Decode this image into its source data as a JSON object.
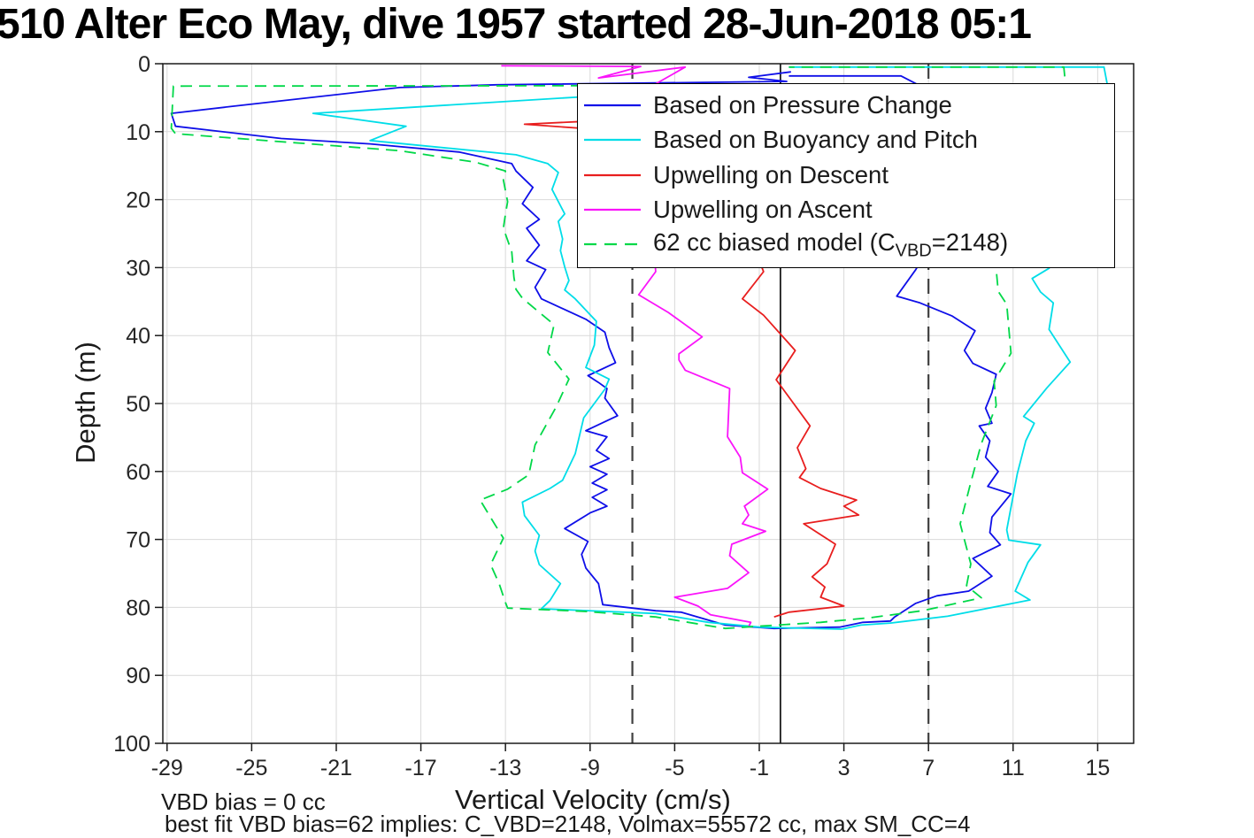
{
  "title": "510 Alter Eco May, dive 1957 started 28-Jun-2018 05:1",
  "annotations": {
    "vbd_bias": "VBD bias = 0 cc",
    "best_fit": "best fit VBD bias=62 implies: C_VBD=2148, Volmax=55572 cc, max SM_CC=4"
  },
  "colors": {
    "blue": "#0f0fe8",
    "cyan": "#00dde8",
    "red": "#e81e1e",
    "magenta": "#fa14fa",
    "green": "#00d848",
    "grid": "#d9d9d9",
    "axis": "#1a1a1a",
    "ref_dashed": "#404040",
    "ref_solid": "#1a1a1a"
  },
  "chart_data": {
    "type": "line",
    "title": "510 Alter Eco May, dive 1957 started 28-Jun-2018 05:1",
    "xlabel": "Vertical Velocity (cm/s)",
    "ylabel": "Depth (m)",
    "xlim": [
      -29.2,
      16.7
    ],
    "ylim": [
      0,
      100
    ],
    "y_reversed": true,
    "grid": true,
    "xticks": [
      -29,
      -25,
      -21,
      -17,
      -13,
      -9,
      -5,
      -1,
      3,
      7,
      11,
      15
    ],
    "yticks": [
      0,
      10,
      20,
      30,
      40,
      50,
      60,
      70,
      80,
      90,
      100
    ],
    "reference_lines": {
      "solid_x": [
        0
      ],
      "dashed_x": [
        -7,
        7
      ]
    },
    "legend_position": "upper right inside",
    "legend": [
      {
        "label": "Based on Pressure Change",
        "color_key": "blue",
        "dash": null
      },
      {
        "label": "Based on Buoyancy and Pitch",
        "color_key": "cyan",
        "dash": null
      },
      {
        "label": "Upwelling on Descent",
        "color_key": "red",
        "dash": null
      },
      {
        "label": "Upwelling on Ascent",
        "color_key": "magenta",
        "dash": null
      },
      {
        "label": "62 cc biased model (C_VBD=2148)",
        "label_parts": {
          "pre": "62 cc biased model (C",
          "sub": "VBD",
          "post": "=2148)"
        },
        "color_key": "green",
        "dash": "13 8"
      }
    ],
    "series": [
      {
        "name": "Based on Pressure Change",
        "color_key": "blue",
        "dash": null,
        "points": [
          [
            0.5,
            1.2
          ],
          [
            -1.5,
            2.0
          ],
          [
            0.3,
            2.6
          ],
          [
            -13.4,
            3.1
          ],
          [
            -18.0,
            3.5
          ],
          [
            -26.0,
            6.3
          ],
          [
            -28.8,
            7.3
          ],
          [
            -28.6,
            9.2
          ],
          [
            -23.6,
            11.0
          ],
          [
            -19.4,
            11.8
          ],
          [
            -15.2,
            13.0
          ],
          [
            -12.7,
            14.7
          ],
          [
            -12.5,
            15.8
          ],
          [
            -11.7,
            18.2
          ],
          [
            -12.2,
            20.6
          ],
          [
            -11.4,
            22.9
          ],
          [
            -12.0,
            24.2
          ],
          [
            -11.4,
            26.7
          ],
          [
            -12.0,
            29.0
          ],
          [
            -11.1,
            30.3
          ],
          [
            -11.6,
            32.9
          ],
          [
            -11.3,
            34.6
          ],
          [
            -9.2,
            37.6
          ],
          [
            -8.3,
            39.5
          ],
          [
            -8.1,
            41.8
          ],
          [
            -7.8,
            44.0
          ],
          [
            -9.1,
            45.9
          ],
          [
            -8.6,
            46.9
          ],
          [
            -8.2,
            47.8
          ],
          [
            -8.3,
            49.2
          ],
          [
            -7.7,
            51.8
          ],
          [
            -9.2,
            54.0
          ],
          [
            -8.2,
            54.9
          ],
          [
            -8.7,
            56.9
          ],
          [
            -8.1,
            58.1
          ],
          [
            -9.0,
            59.3
          ],
          [
            -8.2,
            60.4
          ],
          [
            -8.9,
            61.7
          ],
          [
            -8.2,
            62.7
          ],
          [
            -8.9,
            63.8
          ],
          [
            -8.2,
            65.1
          ],
          [
            -9.0,
            66.1
          ],
          [
            -10.2,
            68.4
          ],
          [
            -9.1,
            70.3
          ],
          [
            -9.4,
            72.2
          ],
          [
            -9.2,
            74.2
          ],
          [
            -8.6,
            76.5
          ],
          [
            -8.4,
            79.6
          ],
          [
            -5.9,
            80.5
          ],
          [
            -4.7,
            80.7
          ],
          [
            -2.6,
            82.6
          ],
          [
            -0.3,
            83.1
          ],
          [
            2.8,
            82.9
          ],
          [
            3.9,
            82.2
          ],
          [
            5.2,
            82.0
          ],
          [
            5.4,
            81.4
          ],
          [
            6.4,
            79.4
          ],
          [
            7.4,
            78.3
          ],
          [
            8.9,
            77.6
          ],
          [
            10.0,
            75.4
          ],
          [
            9.1,
            72.8
          ],
          [
            10.4,
            70.8
          ],
          [
            9.9,
            69.0
          ],
          [
            10.0,
            66.7
          ],
          [
            10.9,
            63.3
          ],
          [
            9.8,
            62.2
          ],
          [
            10.3,
            60.0
          ],
          [
            9.7,
            57.9
          ],
          [
            9.9,
            55.5
          ],
          [
            9.4,
            53.3
          ],
          [
            10.0,
            52.9
          ],
          [
            9.7,
            50.7
          ],
          [
            10.0,
            48.4
          ],
          [
            10.2,
            45.7
          ],
          [
            9.1,
            44.1
          ],
          [
            8.7,
            42.2
          ],
          [
            9.2,
            39.3
          ],
          [
            8.1,
            37.1
          ],
          [
            6.6,
            35.2
          ],
          [
            5.5,
            34.2
          ],
          [
            6.4,
            30.3
          ],
          [
            7.2,
            26.0
          ],
          [
            7.8,
            21.0
          ],
          [
            8.1,
            16.0
          ],
          [
            7.9,
            11.0
          ],
          [
            7.5,
            6.5
          ],
          [
            7.2,
            4.2
          ],
          [
            5.7,
            1.8
          ],
          [
            0.4,
            1.8
          ]
        ]
      },
      {
        "name": "Based on Buoyancy and Pitch",
        "color_key": "cyan",
        "dash": null,
        "points": [
          [
            -9.5,
            4.9
          ],
          [
            -22.1,
            7.3
          ],
          [
            -17.7,
            9.2
          ],
          [
            -19.4,
            11.3
          ],
          [
            -12.5,
            13.4
          ],
          [
            -11.0,
            14.7
          ],
          [
            -10.5,
            16.0
          ],
          [
            -10.8,
            18.5
          ],
          [
            -10.2,
            22.1
          ],
          [
            -10.5,
            23.2
          ],
          [
            -10.3,
            25.8
          ],
          [
            -10.4,
            27.5
          ],
          [
            -10.2,
            29.9
          ],
          [
            -10.0,
            31.9
          ],
          [
            -10.2,
            33.3
          ],
          [
            -9.7,
            34.6
          ],
          [
            -8.7,
            37.9
          ],
          [
            -8.8,
            41.4
          ],
          [
            -9.2,
            44.7
          ],
          [
            -8.1,
            46.4
          ],
          [
            -8.3,
            47.9
          ],
          [
            -9.3,
            52.1
          ],
          [
            -9.7,
            57.4
          ],
          [
            -10.3,
            61.3
          ],
          [
            -10.9,
            62.5
          ],
          [
            -12.2,
            64.5
          ],
          [
            -12.1,
            66.5
          ],
          [
            -11.4,
            69.4
          ],
          [
            -11.6,
            71.7
          ],
          [
            -11.4,
            73.7
          ],
          [
            -10.4,
            76.5
          ],
          [
            -10.9,
            79.0
          ],
          [
            -11.3,
            80.2
          ],
          [
            -5.9,
            80.9
          ],
          [
            -3.4,
            82.2
          ],
          [
            -1.0,
            82.9
          ],
          [
            2.9,
            83.2
          ],
          [
            3.8,
            82.6
          ],
          [
            5.2,
            82.3
          ],
          [
            7.9,
            81.3
          ],
          [
            11.8,
            78.9
          ],
          [
            11.1,
            77.6
          ],
          [
            11.7,
            73.4
          ],
          [
            12.3,
            70.8
          ],
          [
            10.8,
            70.1
          ],
          [
            10.7,
            68.6
          ],
          [
            11.2,
            60.3
          ],
          [
            11.6,
            55.5
          ],
          [
            12.0,
            52.9
          ],
          [
            11.5,
            51.9
          ],
          [
            12.6,
            47.7
          ],
          [
            13.7,
            43.9
          ],
          [
            12.7,
            39.1
          ],
          [
            12.9,
            35.2
          ],
          [
            12.3,
            33.6
          ],
          [
            11.9,
            31.6
          ],
          [
            12.7,
            30.1
          ],
          [
            13.4,
            26.0
          ],
          [
            14.0,
            21.0
          ],
          [
            14.6,
            16.0
          ],
          [
            15.0,
            11.0
          ],
          [
            15.3,
            6.5
          ],
          [
            15.5,
            3.8
          ],
          [
            15.3,
            0.5
          ],
          [
            0.4,
            0.5
          ]
        ]
      },
      {
        "name": "Upwelling on Descent",
        "color_key": "red",
        "dash": null,
        "points": [
          [
            -9.4,
            8.5
          ],
          [
            -12.1,
            8.9
          ],
          [
            -9.4,
            9.5
          ],
          [
            -6.0,
            11.0
          ],
          [
            -3.0,
            15.0
          ],
          [
            -2.0,
            20.0
          ],
          [
            -1.5,
            25.0
          ],
          [
            -0.8,
            30.6
          ],
          [
            -1.8,
            34.6
          ],
          [
            -0.8,
            37.0
          ],
          [
            0.7,
            42.2
          ],
          [
            -0.2,
            46.5
          ],
          [
            1.4,
            53.3
          ],
          [
            0.8,
            56.5
          ],
          [
            1.2,
            59.6
          ],
          [
            0.9,
            60.9
          ],
          [
            1.9,
            62.5
          ],
          [
            3.6,
            64.2
          ],
          [
            3.0,
            65.1
          ],
          [
            3.7,
            66.4
          ],
          [
            1.1,
            67.7
          ],
          [
            2.6,
            70.7
          ],
          [
            2.2,
            73.6
          ],
          [
            1.5,
            75.5
          ],
          [
            2.1,
            77.0
          ],
          [
            1.9,
            78.5
          ],
          [
            3.0,
            79.8
          ],
          [
            0.4,
            80.7
          ],
          [
            -0.3,
            81.4
          ]
        ]
      },
      {
        "name": "Upwelling on Ascent",
        "color_key": "magenta",
        "dash": null,
        "points": [
          [
            -13.2,
            0.3
          ],
          [
            -6.6,
            0.4
          ],
          [
            -8.6,
            2.1
          ],
          [
            -4.5,
            0.5
          ],
          [
            -6.2,
            3.5
          ],
          [
            -6.0,
            8.0
          ],
          [
            -5.5,
            14.0
          ],
          [
            -5.8,
            20.0
          ],
          [
            -6.0,
            26.0
          ],
          [
            -5.9,
            30.6
          ],
          [
            -6.7,
            34.0
          ],
          [
            -5.3,
            36.6
          ],
          [
            -3.7,
            40.2
          ],
          [
            -4.8,
            42.7
          ],
          [
            -4.8,
            43.6
          ],
          [
            -4.5,
            45.1
          ],
          [
            -2.4,
            47.8
          ],
          [
            -2.5,
            54.9
          ],
          [
            -1.9,
            57.9
          ],
          [
            -1.8,
            60.2
          ],
          [
            -0.6,
            62.6
          ],
          [
            -1.7,
            65.1
          ],
          [
            -1.5,
            66.4
          ],
          [
            -1.8,
            67.7
          ],
          [
            -0.7,
            68.8
          ],
          [
            -2.3,
            70.7
          ],
          [
            -2.4,
            72.4
          ],
          [
            -1.5,
            74.9
          ],
          [
            -2.5,
            77.2
          ],
          [
            -5.0,
            78.5
          ],
          [
            -3.9,
            79.8
          ],
          [
            -3.3,
            81.1
          ],
          [
            -1.4,
            82.2
          ],
          [
            -1.5,
            82.8
          ]
        ]
      },
      {
        "name": "62 cc biased model (C_VBD=2148)",
        "color_key": "green",
        "dash": "13 8",
        "points": [
          [
            0.3,
            3.2
          ],
          [
            -28.7,
            3.3
          ],
          [
            -28.8,
            9.5
          ],
          [
            -28.6,
            10.3
          ],
          [
            -18.0,
            12.8
          ],
          [
            -14.4,
            14.5
          ],
          [
            -13.0,
            15.8
          ],
          [
            -13.1,
            17.1
          ],
          [
            -12.9,
            20.3
          ],
          [
            -13.0,
            22.1
          ],
          [
            -13.1,
            24.2
          ],
          [
            -12.7,
            27.7
          ],
          [
            -12.6,
            31.4
          ],
          [
            -12.5,
            33.2
          ],
          [
            -12.2,
            34.5
          ],
          [
            -10.7,
            38.4
          ],
          [
            -11.0,
            42.5
          ],
          [
            -10.0,
            46.4
          ],
          [
            -10.6,
            50.5
          ],
          [
            -11.6,
            56.1
          ],
          [
            -11.9,
            60.5
          ],
          [
            -12.9,
            62.6
          ],
          [
            -14.2,
            64.2
          ],
          [
            -13.5,
            67.8
          ],
          [
            -13.1,
            69.8
          ],
          [
            -13.7,
            73.7
          ],
          [
            -13.3,
            76.5
          ],
          [
            -13.0,
            79.3
          ],
          [
            -12.9,
            80.1
          ],
          [
            -9.2,
            80.6
          ],
          [
            -5.9,
            81.4
          ],
          [
            -2.6,
            83.1
          ],
          [
            -1.2,
            82.8
          ],
          [
            1.9,
            82.2
          ],
          [
            4.3,
            81.5
          ],
          [
            6.7,
            80.5
          ],
          [
            9.5,
            78.6
          ],
          [
            8.8,
            76.8
          ],
          [
            9.0,
            73.6
          ],
          [
            8.5,
            67.7
          ],
          [
            9.0,
            61.6
          ],
          [
            9.5,
            55.9
          ],
          [
            10.2,
            50.3
          ],
          [
            10.1,
            46.7
          ],
          [
            10.9,
            42.6
          ],
          [
            10.7,
            35.4
          ],
          [
            10.3,
            33.5
          ],
          [
            10.2,
            30.3
          ],
          [
            10.8,
            25.0
          ],
          [
            11.2,
            20.0
          ],
          [
            11.8,
            15.0
          ],
          [
            12.4,
            10.0
          ],
          [
            13.0,
            6.0
          ],
          [
            13.5,
            3.7
          ],
          [
            13.4,
            0.5
          ],
          [
            0.4,
            0.5
          ]
        ]
      }
    ]
  }
}
